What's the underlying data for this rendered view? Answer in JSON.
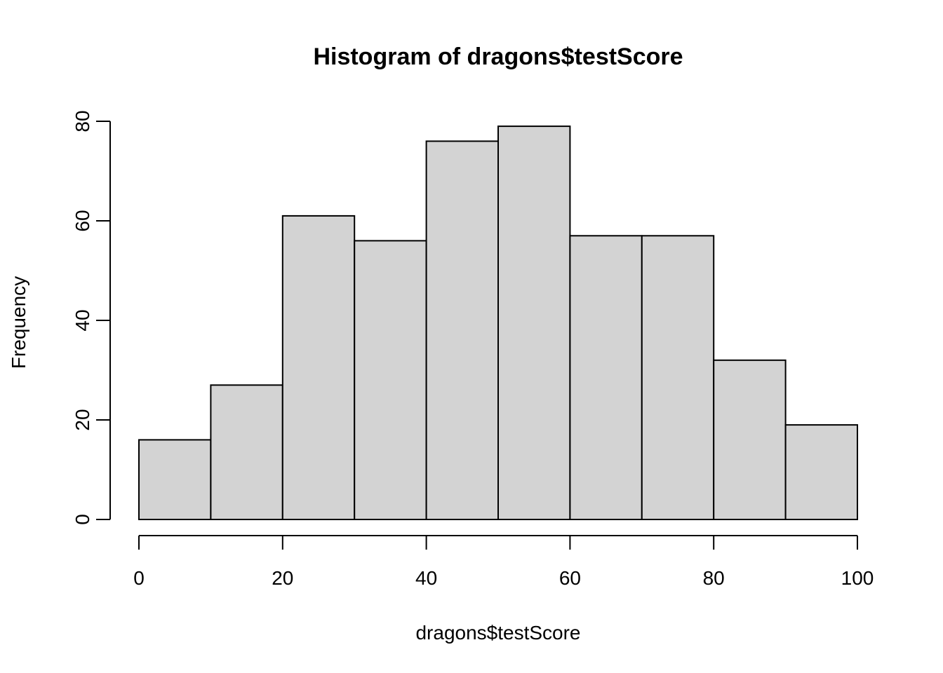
{
  "chart_data": {
    "type": "bar",
    "title": "Histogram of dragons$testScore",
    "xlabel": "dragons$testScore",
    "ylabel": "Frequency",
    "bins": [
      {
        "from": 0,
        "to": 10,
        "count": 16
      },
      {
        "from": 10,
        "to": 20,
        "count": 27
      },
      {
        "from": 20,
        "to": 30,
        "count": 61
      },
      {
        "from": 30,
        "to": 40,
        "count": 56
      },
      {
        "from": 40,
        "to": 50,
        "count": 76
      },
      {
        "from": 50,
        "to": 60,
        "count": 79
      },
      {
        "from": 60,
        "to": 70,
        "count": 57
      },
      {
        "from": 70,
        "to": 80,
        "count": 57
      },
      {
        "from": 80,
        "to": 90,
        "count": 32
      },
      {
        "from": 90,
        "to": 100,
        "count": 19
      }
    ],
    "xlim": [
      0,
      100
    ],
    "ylim": [
      0,
      80
    ],
    "x_ticks": [
      "0",
      "20",
      "40",
      "60",
      "80",
      "100"
    ],
    "y_ticks": [
      "0",
      "20",
      "40",
      "60",
      "80"
    ],
    "grid": false,
    "bar_fill": "#d3d3d3",
    "bar_stroke": "#000000"
  }
}
